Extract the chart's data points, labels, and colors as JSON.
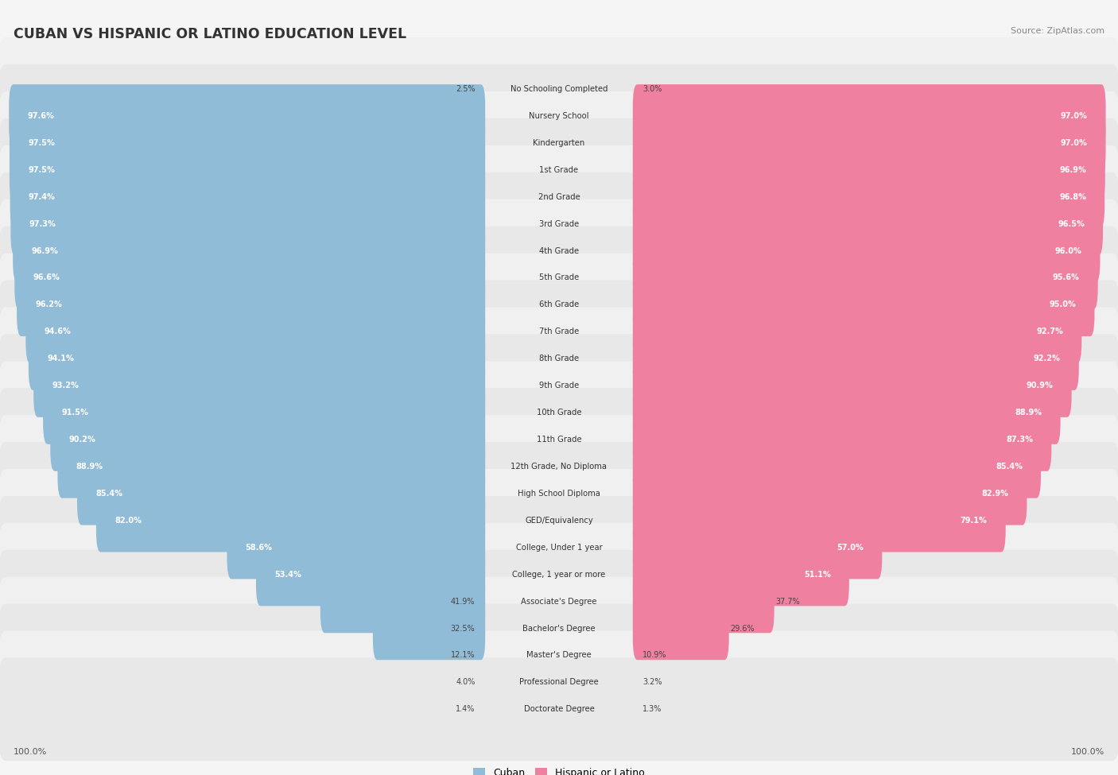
{
  "title": "CUBAN VS HISPANIC OR LATINO EDUCATION LEVEL",
  "source": "Source: ZipAtlas.com",
  "categories": [
    "No Schooling Completed",
    "Nursery School",
    "Kindergarten",
    "1st Grade",
    "2nd Grade",
    "3rd Grade",
    "4th Grade",
    "5th Grade",
    "6th Grade",
    "7th Grade",
    "8th Grade",
    "9th Grade",
    "10th Grade",
    "11th Grade",
    "12th Grade, No Diploma",
    "High School Diploma",
    "GED/Equivalency",
    "College, Under 1 year",
    "College, 1 year or more",
    "Associate's Degree",
    "Bachelor's Degree",
    "Master's Degree",
    "Professional Degree",
    "Doctorate Degree"
  ],
  "cuban": [
    2.5,
    97.6,
    97.5,
    97.5,
    97.4,
    97.3,
    96.9,
    96.6,
    96.2,
    94.6,
    94.1,
    93.2,
    91.5,
    90.2,
    88.9,
    85.4,
    82.0,
    58.6,
    53.4,
    41.9,
    32.5,
    12.1,
    4.0,
    1.4
  ],
  "hispanic": [
    3.0,
    97.0,
    97.0,
    96.9,
    96.8,
    96.5,
    96.0,
    95.6,
    95.0,
    92.7,
    92.2,
    90.9,
    88.9,
    87.3,
    85.4,
    82.9,
    79.1,
    57.0,
    51.1,
    37.7,
    29.6,
    10.9,
    3.2,
    1.3
  ],
  "cuban_color": "#90bcd8",
  "hispanic_color": "#f080a0",
  "row_bg_light": "#f0f0f0",
  "row_bg_dark": "#e8e8e8",
  "fig_bg": "#f5f5f5",
  "legend_cuban": "Cuban",
  "legend_hispanic": "Hispanic or Latino"
}
